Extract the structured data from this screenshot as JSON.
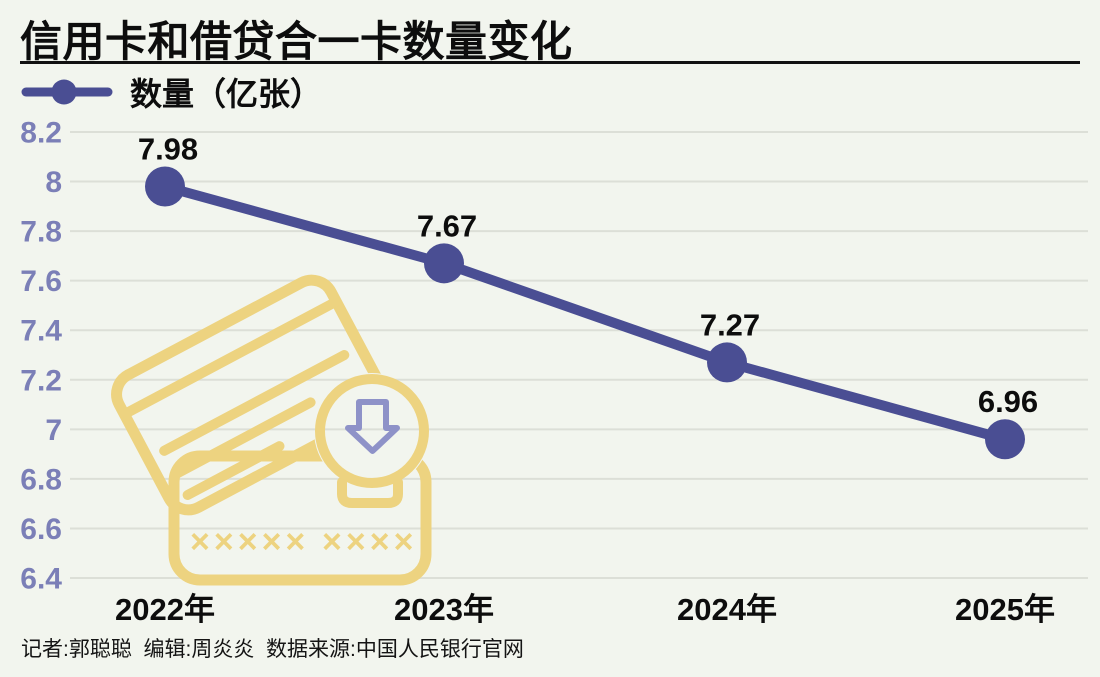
{
  "page": {
    "background": "#f2f5ee"
  },
  "header": {
    "title": "信用卡和借贷合一卡数量变化"
  },
  "legend": {
    "label": "数量（亿张）",
    "marker_icon": "line-dot-marker-icon"
  },
  "chart_data": {
    "type": "line",
    "title": "信用卡和借贷合一卡数量变化",
    "categories": [
      "2022年",
      "2023年",
      "2024年",
      "2025年"
    ],
    "series": [
      {
        "name": "数量（亿张）",
        "values": [
          7.98,
          7.67,
          7.27,
          6.96
        ]
      }
    ],
    "point_labels": [
      "7.98",
      "7.67",
      "7.27",
      "6.96"
    ],
    "ylim": [
      6.4,
      8.2
    ],
    "ytick_step": 0.2,
    "yticks": [
      "8.2",
      "8",
      "7.8",
      "7.6",
      "7.4",
      "7.2",
      "7",
      "6.8",
      "6.6",
      "6.4"
    ],
    "grid": true,
    "legend_position": "top-left",
    "watermark_icon": "credit-card-decrease-icon",
    "colors": {
      "line": "#4a4e93",
      "axis_labels": "#7b7fb7",
      "gridline": "#dcdfd7",
      "value_labels": "#0d0d0d",
      "watermark": "#edd380",
      "watermark_arrow": "#8e92c8",
      "background": "#f2f5ee"
    }
  },
  "footer": {
    "credit": "记者:郭聪聪  编辑:周炎炎  数据来源:中国人民银行官网"
  }
}
